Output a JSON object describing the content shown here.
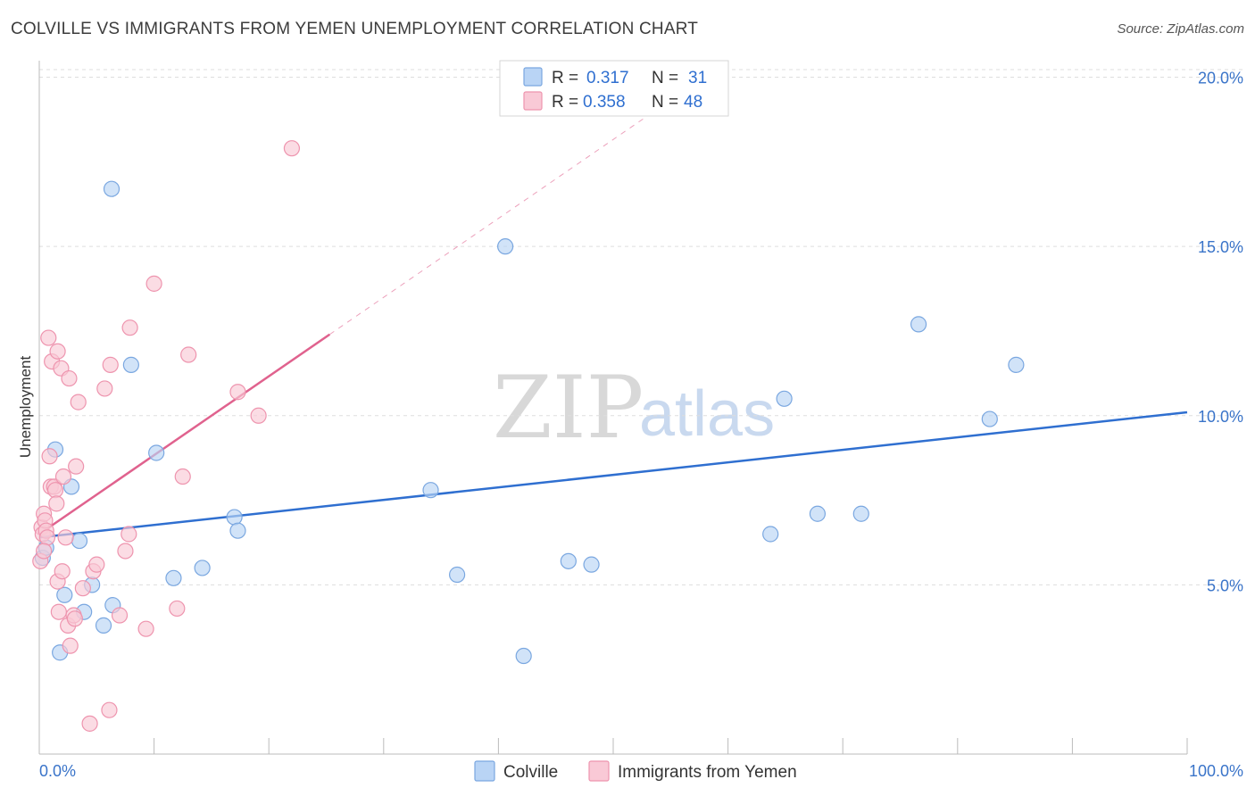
{
  "title": "COLVILLE VS IMMIGRANTS FROM YEMEN UNEMPLOYMENT CORRELATION CHART",
  "source": "Source: ZipAtlas.com",
  "watermark": {
    "zip": "ZIP",
    "atlas": "atlas"
  },
  "colors": {
    "colville_fill": "#b9d4f5",
    "colville_stroke": "#7aa7e0",
    "colville_line": "#2f6fd0",
    "yemen_fill": "#f9c9d6",
    "yemen_stroke": "#ee94ae",
    "yemen_line": "#e0628e",
    "grid": "#dddddd",
    "tick_label": "#3a74c9"
  },
  "legend": {
    "rows": [
      {
        "r_label": "R =",
        "r_value": "0.317",
        "n_label": "N =",
        "n_value": "31"
      },
      {
        "r_label": "R =",
        "r_value": "0.358",
        "n_label": "N =",
        "n_value": "48"
      }
    ]
  },
  "bottom_legend": [
    "Colville",
    "Immigrants from Yemen"
  ],
  "chart_data": {
    "type": "scatter",
    "title": "COLVILLE VS IMMIGRANTS FROM YEMEN UNEMPLOYMENT CORRELATION CHART",
    "xlabel": "",
    "ylabel": "Unemployment",
    "xlim": [
      0,
      100
    ],
    "ylim": [
      0,
      20.7
    ],
    "x_tick_labels": [
      {
        "value": 0,
        "label": "0.0%"
      },
      {
        "value": 100,
        "label": "100.0%"
      }
    ],
    "y_tick_labels": [
      {
        "value": 5,
        "label": "5.0%"
      },
      {
        "value": 10,
        "label": "10.0%"
      },
      {
        "value": 15,
        "label": "15.0%"
      },
      {
        "value": 20,
        "label": "20.0%"
      }
    ],
    "series": [
      {
        "name": "Colville",
        "r": 0.317,
        "n": 31,
        "trend": {
          "x0": 0,
          "y0": 6.4,
          "x1": 100,
          "y1": 10.1,
          "dashed_to_x": null
        },
        "points": [
          [
            0.3,
            5.8
          ],
          [
            0.6,
            6.1
          ],
          [
            1.4,
            9.0
          ],
          [
            1.8,
            3.0
          ],
          [
            2.2,
            4.7
          ],
          [
            2.8,
            7.9
          ],
          [
            3.5,
            6.3
          ],
          [
            3.9,
            4.2
          ],
          [
            4.6,
            5.0
          ],
          [
            5.6,
            3.8
          ],
          [
            6.4,
            4.4
          ],
          [
            6.3,
            16.7
          ],
          [
            8.0,
            11.5
          ],
          [
            10.2,
            8.9
          ],
          [
            11.7,
            5.2
          ],
          [
            14.2,
            5.5
          ],
          [
            17.0,
            7.0
          ],
          [
            17.3,
            6.6
          ],
          [
            34.1,
            7.8
          ],
          [
            36.4,
            5.3
          ],
          [
            40.6,
            15.0
          ],
          [
            42.2,
            2.9
          ],
          [
            46.1,
            5.7
          ],
          [
            48.1,
            5.6
          ],
          [
            63.7,
            6.5
          ],
          [
            64.9,
            10.5
          ],
          [
            67.8,
            7.1
          ],
          [
            71.6,
            7.1
          ],
          [
            76.6,
            12.7
          ],
          [
            82.8,
            9.9
          ],
          [
            85.1,
            11.5
          ]
        ]
      },
      {
        "name": "Immigrants from Yemen",
        "r": 0.358,
        "n": 48,
        "trend": {
          "x0": 0,
          "y0": 6.5,
          "x1": 25.3,
          "y1": 12.4,
          "dashed_to_x": 53.5
        },
        "points": [
          [
            0.2,
            6.7
          ],
          [
            0.3,
            6.5
          ],
          [
            0.4,
            7.1
          ],
          [
            0.5,
            6.9
          ],
          [
            0.6,
            6.6
          ],
          [
            0.7,
            6.4
          ],
          [
            0.8,
            12.3
          ],
          [
            0.9,
            8.8
          ],
          [
            1.0,
            7.9
          ],
          [
            1.1,
            11.6
          ],
          [
            1.3,
            7.9
          ],
          [
            1.4,
            7.8
          ],
          [
            1.5,
            7.4
          ],
          [
            1.6,
            5.1
          ],
          [
            1.7,
            4.2
          ],
          [
            1.6,
            11.9
          ],
          [
            1.9,
            11.4
          ],
          [
            2.0,
            5.4
          ],
          [
            2.1,
            8.2
          ],
          [
            2.3,
            6.4
          ],
          [
            2.5,
            3.8
          ],
          [
            2.6,
            11.1
          ],
          [
            2.7,
            3.2
          ],
          [
            3.0,
            4.1
          ],
          [
            3.1,
            4.0
          ],
          [
            3.2,
            8.5
          ],
          [
            3.4,
            10.4
          ],
          [
            3.8,
            4.9
          ],
          [
            4.4,
            0.9
          ],
          [
            4.7,
            5.4
          ],
          [
            5.0,
            5.6
          ],
          [
            5.7,
            10.8
          ],
          [
            6.2,
            11.5
          ],
          [
            6.1,
            1.3
          ],
          [
            7.0,
            4.1
          ],
          [
            7.5,
            6.0
          ],
          [
            7.8,
            6.5
          ],
          [
            7.9,
            12.6
          ],
          [
            9.3,
            3.7
          ],
          [
            10.0,
            13.9
          ],
          [
            12.0,
            4.3
          ],
          [
            12.5,
            8.2
          ],
          [
            13.0,
            11.8
          ],
          [
            17.3,
            10.7
          ],
          [
            19.1,
            10.0
          ],
          [
            22.0,
            17.9
          ],
          [
            0.1,
            5.7
          ],
          [
            0.4,
            6.0
          ]
        ]
      }
    ]
  }
}
